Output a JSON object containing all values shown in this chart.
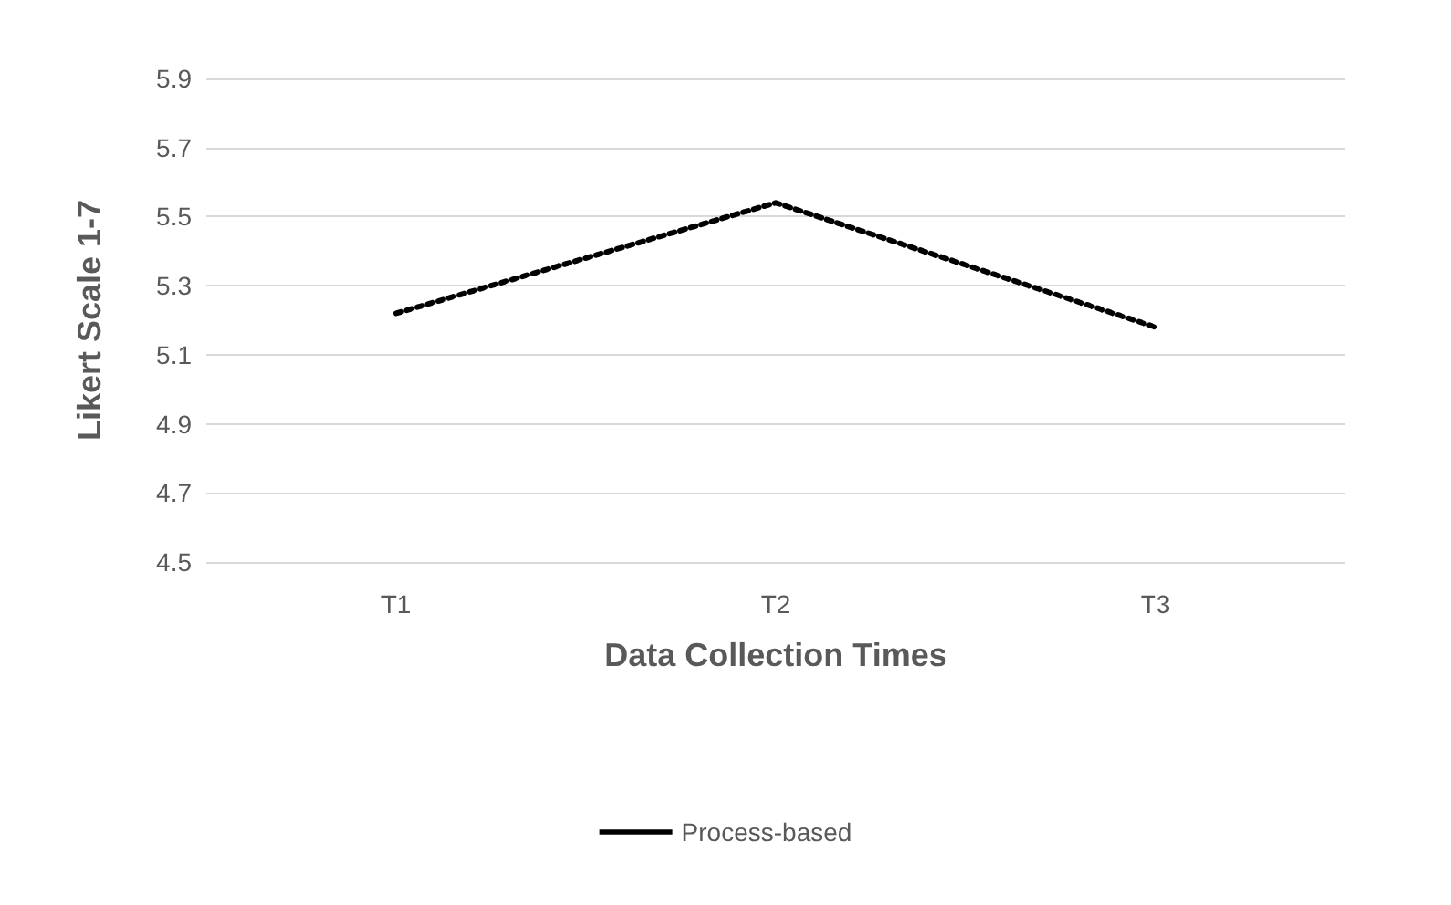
{
  "chart_data": {
    "type": "line",
    "xlabel": "Data Collection Times",
    "ylabel": "Likert Scale 1-7",
    "categories": [
      "T1",
      "T2",
      "T3"
    ],
    "series": [
      {
        "name": "Process-based",
        "color": "#000000",
        "values": [
          5.22,
          5.54,
          5.18
        ]
      }
    ],
    "ylim": [
      4.5,
      5.9
    ],
    "yticks": [
      4.5,
      4.7,
      4.9,
      5.1,
      5.3,
      5.5,
      5.7,
      5.9
    ],
    "grid": "y",
    "legend": "bottom",
    "marker": "none",
    "line_style": "dotted"
  }
}
